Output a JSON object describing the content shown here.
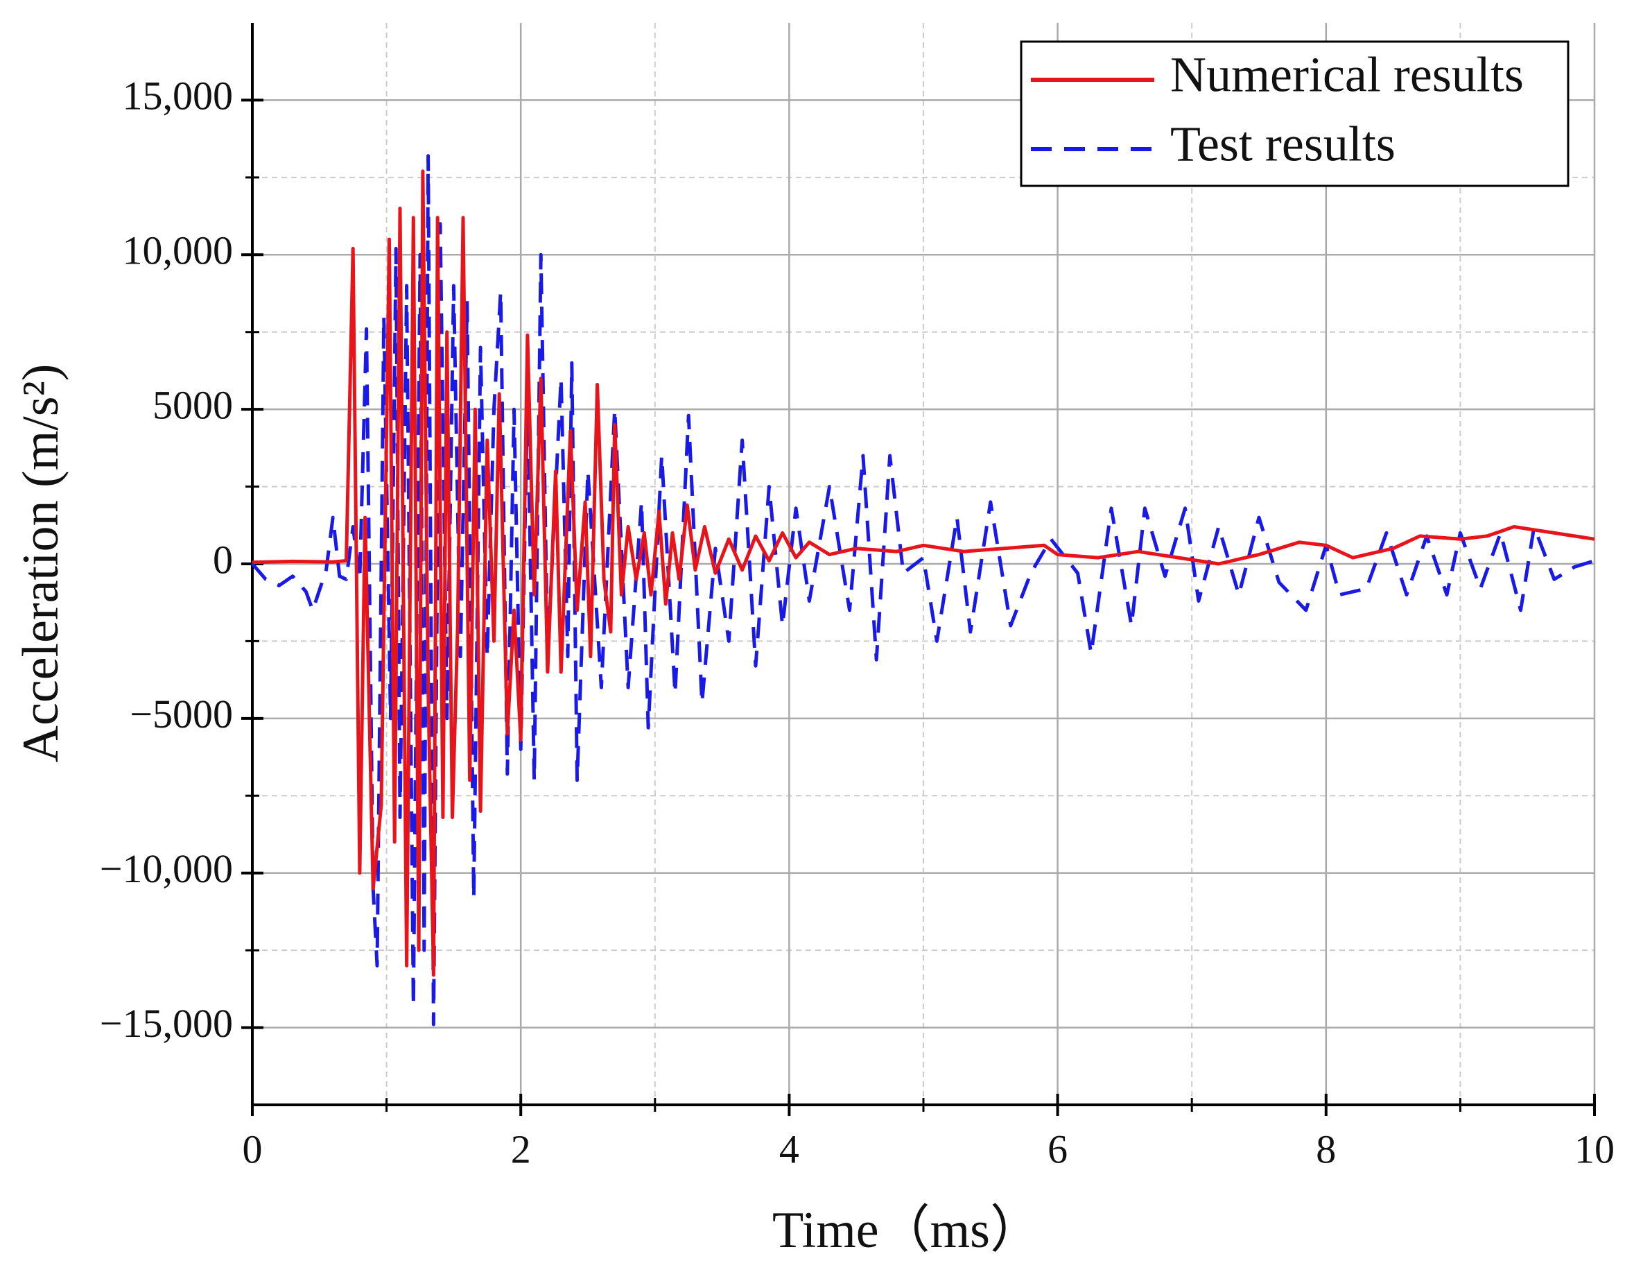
{
  "chart_data": {
    "type": "line",
    "xlabel": "Time（ms）",
    "ylabel": "Acceleration (m/s²)",
    "xlim": [
      0,
      10
    ],
    "xticks": [
      0,
      2,
      4,
      6,
      8,
      10
    ],
    "x_minor_ticks": [
      1,
      3,
      5,
      7,
      9
    ],
    "ylim": [
      -17500,
      17500
    ],
    "yticks": [
      {
        "value": -15000,
        "label": "−15,000"
      },
      {
        "value": -10000,
        "label": "−10,000"
      },
      {
        "value": -5000,
        "label": "−5000"
      },
      0,
      5000,
      {
        "value": 10000,
        "label": "10,000"
      },
      {
        "value": 15000,
        "label": "15,000"
      }
    ],
    "y_minor_ticks": [
      -12500,
      -7500,
      -2500,
      2500,
      7500,
      12500
    ],
    "grid": true,
    "legend": "upper right",
    "series": [
      {
        "name": "Numerical results",
        "color": "#e8141b",
        "style": "solid",
        "x": [
          0,
          0.3,
          0.6,
          0.7,
          0.75,
          0.8,
          0.84,
          0.9,
          0.96,
          1.02,
          1.06,
          1.1,
          1.15,
          1.2,
          1.24,
          1.27,
          1.31,
          1.35,
          1.38,
          1.42,
          1.45,
          1.49,
          1.53,
          1.57,
          1.62,
          1.66,
          1.7,
          1.75,
          1.8,
          1.84,
          1.9,
          1.95,
          2.0,
          2.05,
          2.1,
          2.15,
          2.2,
          2.26,
          2.3,
          2.37,
          2.42,
          2.48,
          2.52,
          2.57,
          2.62,
          2.67,
          2.7,
          2.75,
          2.8,
          2.86,
          2.92,
          2.97,
          3.03,
          3.08,
          3.13,
          3.18,
          3.24,
          3.3,
          3.37,
          3.45,
          3.55,
          3.65,
          3.75,
          3.85,
          3.95,
          4.05,
          4.15,
          4.3,
          4.5,
          4.8,
          5.0,
          5.3,
          5.6,
          5.9,
          6.0,
          6.3,
          6.6,
          6.9,
          7.2,
          7.5,
          7.8,
          8.0,
          8.2,
          8.5,
          8.7,
          9.0,
          9.2,
          9.4,
          9.7,
          10
        ],
        "values": [
          50,
          80,
          60,
          100,
          10200,
          -10000,
          1500,
          -10500,
          -7800,
          10500,
          -9000,
          11500,
          -13000,
          11200,
          -12500,
          12700,
          -4000,
          -13300,
          11200,
          -8200,
          7500,
          -8200,
          -2000,
          11200,
          -7000,
          5000,
          -8000,
          4000,
          -2500,
          5500,
          -5500,
          -1500,
          -5700,
          7400,
          -1000,
          6000,
          -3500,
          3000,
          -3500,
          4300,
          -1500,
          2000,
          -3000,
          5800,
          -500,
          -2200,
          4500,
          -1000,
          1200,
          -500,
          1000,
          -1000,
          1700,
          -1300,
          1000,
          -500,
          1900,
          -200,
          1200,
          -300,
          800,
          -200,
          900,
          100,
          1000,
          200,
          700,
          300,
          500,
          400,
          600,
          400,
          500,
          600,
          300,
          200,
          400,
          200,
          0,
          300,
          700,
          600,
          200,
          500,
          900,
          800,
          900,
          1200,
          1000,
          800
        ]
      },
      {
        "name": "Test results",
        "color": "#1a1ae6",
        "style": "dashed",
        "x": [
          0,
          0.1,
          0.2,
          0.3,
          0.4,
          0.45,
          0.55,
          0.6,
          0.65,
          0.7,
          0.75,
          0.8,
          0.85,
          0.9,
          0.93,
          0.98,
          1.03,
          1.07,
          1.1,
          1.15,
          1.2,
          1.25,
          1.28,
          1.31,
          1.35,
          1.4,
          1.45,
          1.5,
          1.55,
          1.6,
          1.65,
          1.7,
          1.75,
          1.8,
          1.85,
          1.9,
          1.95,
          2.0,
          2.05,
          2.1,
          2.15,
          2.2,
          2.3,
          2.35,
          2.38,
          2.42,
          2.5,
          2.6,
          2.7,
          2.8,
          2.9,
          2.95,
          3.05,
          3.15,
          3.25,
          3.35,
          3.45,
          3.55,
          3.65,
          3.75,
          3.85,
          3.95,
          4.05,
          4.15,
          4.3,
          4.45,
          4.55,
          4.65,
          4.75,
          4.85,
          5.0,
          5.1,
          5.25,
          5.35,
          5.5,
          5.65,
          5.8,
          5.95,
          6.15,
          6.25,
          6.4,
          6.55,
          6.65,
          6.8,
          6.95,
          7.05,
          7.2,
          7.35,
          7.5,
          7.65,
          7.85,
          8.0,
          8.1,
          8.3,
          8.45,
          8.6,
          8.75,
          8.9,
          9.0,
          9.15,
          9.3,
          9.45,
          9.55,
          9.7,
          9.85,
          10
        ],
        "values": [
          0,
          -500,
          -700,
          -400,
          -900,
          -1500,
          -200,
          1500,
          -400,
          -500,
          1200,
          -500,
          7600,
          -10500,
          -13000,
          8000,
          -5000,
          10200,
          -8200,
          9000,
          -14300,
          10000,
          -12500,
          13200,
          -14900,
          11000,
          -5000,
          9000,
          -3000,
          8500,
          -10800,
          7000,
          -3000,
          5000,
          8800,
          -6800,
          5000,
          -6000,
          5500,
          -7000,
          10000,
          -3000,
          6000,
          -3000,
          6500,
          -7000,
          3000,
          -4000,
          5000,
          -4000,
          2000,
          -5300,
          3500,
          -4200,
          4800,
          -4500,
          500,
          -2500,
          4000,
          -3300,
          2500,
          -2000,
          1800,
          -1200,
          2500,
          -1500,
          3500,
          -3100,
          3500,
          -300,
          200,
          -2500,
          1500,
          -2200,
          2000,
          -2000,
          -300,
          800,
          -300,
          -2900,
          1800,
          -2000,
          1800,
          -400,
          1800,
          -1200,
          1200,
          -1000,
          1500,
          -600,
          -1500,
          600,
          -1000,
          -800,
          1000,
          -1000,
          900,
          -1000,
          1000,
          -800,
          1000,
          -1500,
          1200,
          -500,
          -100,
          100
        ]
      }
    ]
  }
}
